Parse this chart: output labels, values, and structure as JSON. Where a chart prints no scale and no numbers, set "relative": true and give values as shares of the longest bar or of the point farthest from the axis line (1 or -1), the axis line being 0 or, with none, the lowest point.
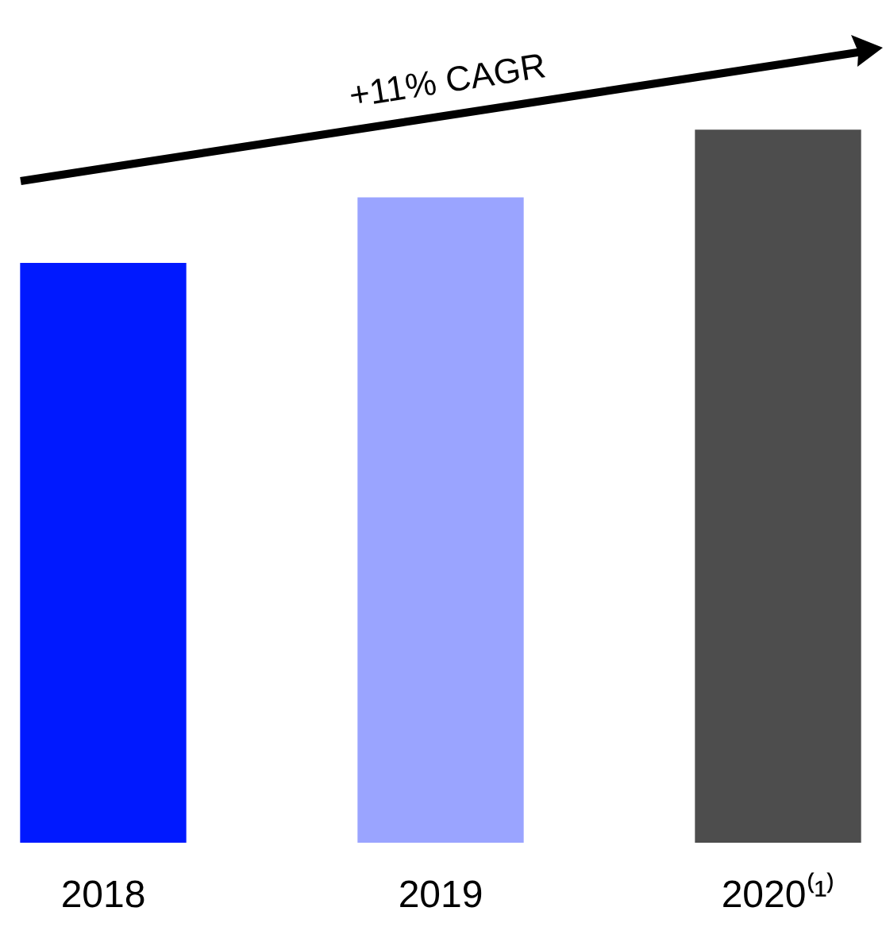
{
  "chart_data": {
    "type": "bar",
    "relative": true,
    "categories": [
      "2018",
      "2019",
      "2020⁽¹⁾"
    ],
    "values": [
      0.813,
      0.905,
      1
    ],
    "colors": [
      "#0019ff",
      "#9aa4ff",
      "#4d4d4d"
    ],
    "annotations": [
      "+11% CAGR"
    ]
  }
}
